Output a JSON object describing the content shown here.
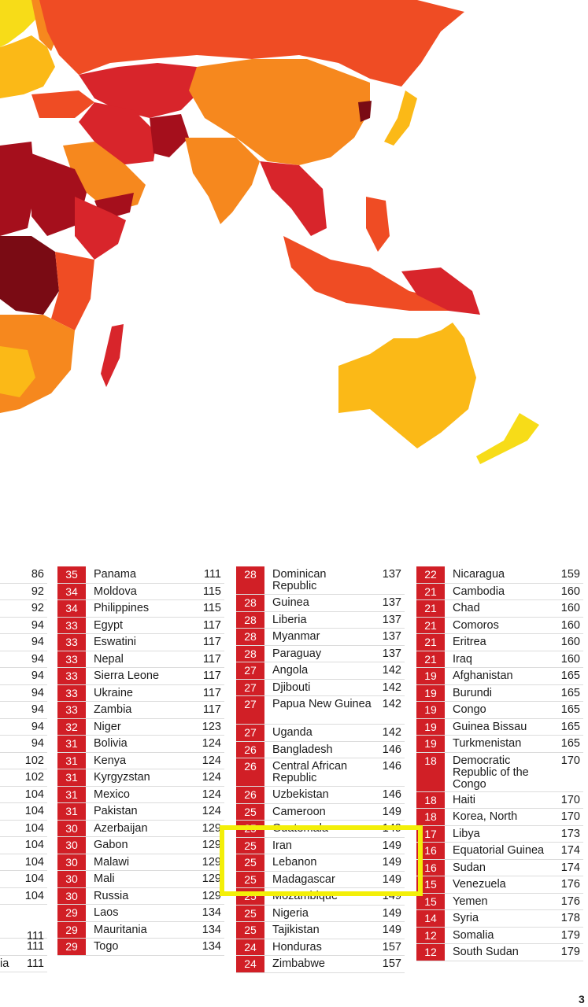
{
  "colors": {
    "score_badge": "#d11f26",
    "highlight_box": "#f3ef08",
    "map_ocean": "#ffffff",
    "legend_scale": [
      "#f7dc18",
      "#fbb917",
      "#f6881e",
      "#ef4c24",
      "#d8252b",
      "#a50f1c",
      "#7a0b14"
    ]
  },
  "page_number": "3",
  "columns": [
    {
      "rows": [
        {
          "score": "",
          "country": "",
          "rank": "86"
        },
        {
          "score": "",
          "country": "",
          "rank": "92"
        },
        {
          "score": "",
          "country": "",
          "rank": "92"
        },
        {
          "score": "",
          "country": "",
          "rank": "94"
        },
        {
          "score": "",
          "country": "",
          "rank": "94"
        },
        {
          "score": "",
          "country": "",
          "rank": "94"
        },
        {
          "score": "",
          "country": "",
          "rank": "94"
        },
        {
          "score": "",
          "country": "",
          "rank": "94"
        },
        {
          "score": "",
          "country": "",
          "rank": "94"
        },
        {
          "score": "",
          "country": "",
          "rank": "94"
        },
        {
          "score": "",
          "country": "",
          "rank": "94"
        },
        {
          "score": "",
          "country": "",
          "rank": "102"
        },
        {
          "score": "",
          "country": "",
          "rank": "102"
        },
        {
          "score": "",
          "country": "",
          "rank": "104"
        },
        {
          "score": "",
          "country": "",
          "rank": "104"
        },
        {
          "score": "",
          "country": "",
          "rank": "104"
        },
        {
          "score": "",
          "country": "",
          "rank": "104"
        },
        {
          "score": "",
          "country": "",
          "rank": "104"
        },
        {
          "score": "",
          "country": "",
          "rank": "104"
        },
        {
          "score": "",
          "country": "",
          "rank": "104"
        },
        {
          "score": "",
          "country": "",
          "rank": "111"
        },
        {
          "score": "",
          "country": "",
          "rank": "111"
        },
        {
          "score": "",
          "country": "ia",
          "rank": "111"
        }
      ]
    },
    {
      "rows": [
        {
          "score": "35",
          "country": "Panama",
          "rank": "111"
        },
        {
          "score": "34",
          "country": "Moldova",
          "rank": "115"
        },
        {
          "score": "34",
          "country": "Philippines",
          "rank": "115"
        },
        {
          "score": "33",
          "country": "Egypt",
          "rank": "117"
        },
        {
          "score": "33",
          "country": "Eswatini",
          "rank": "117"
        },
        {
          "score": "33",
          "country": "Nepal",
          "rank": "117"
        },
        {
          "score": "33",
          "country": "Sierra Leone",
          "rank": "117"
        },
        {
          "score": "33",
          "country": "Ukraine",
          "rank": "117"
        },
        {
          "score": "33",
          "country": "Zambia",
          "rank": "117"
        },
        {
          "score": "32",
          "country": "Niger",
          "rank": "123"
        },
        {
          "score": "31",
          "country": "Bolivia",
          "rank": "124"
        },
        {
          "score": "31",
          "country": "Kenya",
          "rank": "124"
        },
        {
          "score": "31",
          "country": "Kyrgyzstan",
          "rank": "124"
        },
        {
          "score": "31",
          "country": "Mexico",
          "rank": "124"
        },
        {
          "score": "31",
          "country": "Pakistan",
          "rank": "124"
        },
        {
          "score": "30",
          "country": "Azerbaijan",
          "rank": "129"
        },
        {
          "score": "30",
          "country": "Gabon",
          "rank": "129"
        },
        {
          "score": "30",
          "country": "Malawi",
          "rank": "129"
        },
        {
          "score": "30",
          "country": "Mali",
          "rank": "129"
        },
        {
          "score": "30",
          "country": "Russia",
          "rank": "129"
        },
        {
          "score": "29",
          "country": "Laos",
          "rank": "134"
        },
        {
          "score": "29",
          "country": "Mauritania",
          "rank": "134"
        },
        {
          "score": "29",
          "country": "Togo",
          "rank": "134"
        }
      ]
    },
    {
      "rows": [
        {
          "score": "28",
          "country": "Dominican Republic",
          "rank": "137"
        },
        {
          "score": "28",
          "country": "Guinea",
          "rank": "137"
        },
        {
          "score": "28",
          "country": "Liberia",
          "rank": "137"
        },
        {
          "score": "28",
          "country": "Myanmar",
          "rank": "137"
        },
        {
          "score": "28",
          "country": "Paraguay",
          "rank": "137"
        },
        {
          "score": "27",
          "country": "Angola",
          "rank": "142"
        },
        {
          "score": "27",
          "country": "Djibouti",
          "rank": "142"
        },
        {
          "score": "27",
          "country": "Papua New Guinea",
          "rank": "142"
        },
        {
          "score": "27",
          "country": "Uganda",
          "rank": "142"
        },
        {
          "score": "26",
          "country": "Bangladesh",
          "rank": "146"
        },
        {
          "score": "26",
          "country": "Central African Republic",
          "rank": "146"
        },
        {
          "score": "26",
          "country": "Uzbekistan",
          "rank": "146"
        },
        {
          "score": "25",
          "country": "Cameroon",
          "rank": "149"
        },
        {
          "score": "25",
          "country": "Guatemala",
          "rank": "149"
        },
        {
          "score": "25",
          "country": "Iran",
          "rank": "149"
        },
        {
          "score": "25",
          "country": "Lebanon",
          "rank": "149"
        },
        {
          "score": "25",
          "country": "Madagascar",
          "rank": "149"
        },
        {
          "score": "25",
          "country": "Mozambique",
          "rank": "149"
        },
        {
          "score": "25",
          "country": "Nigeria",
          "rank": "149"
        },
        {
          "score": "25",
          "country": "Tajikistan",
          "rank": "149"
        },
        {
          "score": "24",
          "country": "Honduras",
          "rank": "157"
        },
        {
          "score": "24",
          "country": "Zimbabwe",
          "rank": "157"
        }
      ]
    },
    {
      "rows": [
        {
          "score": "22",
          "country": "Nicaragua",
          "rank": "159"
        },
        {
          "score": "21",
          "country": "Cambodia",
          "rank": "160"
        },
        {
          "score": "21",
          "country": "Chad",
          "rank": "160"
        },
        {
          "score": "21",
          "country": "Comoros",
          "rank": "160"
        },
        {
          "score": "21",
          "country": "Eritrea",
          "rank": "160"
        },
        {
          "score": "21",
          "country": "Iraq",
          "rank": "160"
        },
        {
          "score": "19",
          "country": "Afghanistan",
          "rank": "165"
        },
        {
          "score": "19",
          "country": "Burundi",
          "rank": "165"
        },
        {
          "score": "19",
          "country": "Congo",
          "rank": "165"
        },
        {
          "score": "19",
          "country": "Guinea Bissau",
          "rank": "165"
        },
        {
          "score": "19",
          "country": "Turkmenistan",
          "rank": "165"
        },
        {
          "score": "18",
          "country": "Democratic Republic of the Congo",
          "rank": "170"
        },
        {
          "score": "18",
          "country": "Haiti",
          "rank": "170"
        },
        {
          "score": "18",
          "country": "Korea, North",
          "rank": "170"
        },
        {
          "score": "17",
          "country": "Libya",
          "rank": "173"
        },
        {
          "score": "16",
          "country": "Equatorial Guinea",
          "rank": "174"
        },
        {
          "score": "16",
          "country": "Sudan",
          "rank": "174"
        },
        {
          "score": "15",
          "country": "Venezuela",
          "rank": "176"
        },
        {
          "score": "15",
          "country": "Yemen",
          "rank": "176"
        },
        {
          "score": "14",
          "country": "Syria",
          "rank": "178"
        },
        {
          "score": "12",
          "country": "Somalia",
          "rank": "179"
        },
        {
          "score": "12",
          "country": "South Sudan",
          "rank": "179"
        }
      ]
    }
  ]
}
